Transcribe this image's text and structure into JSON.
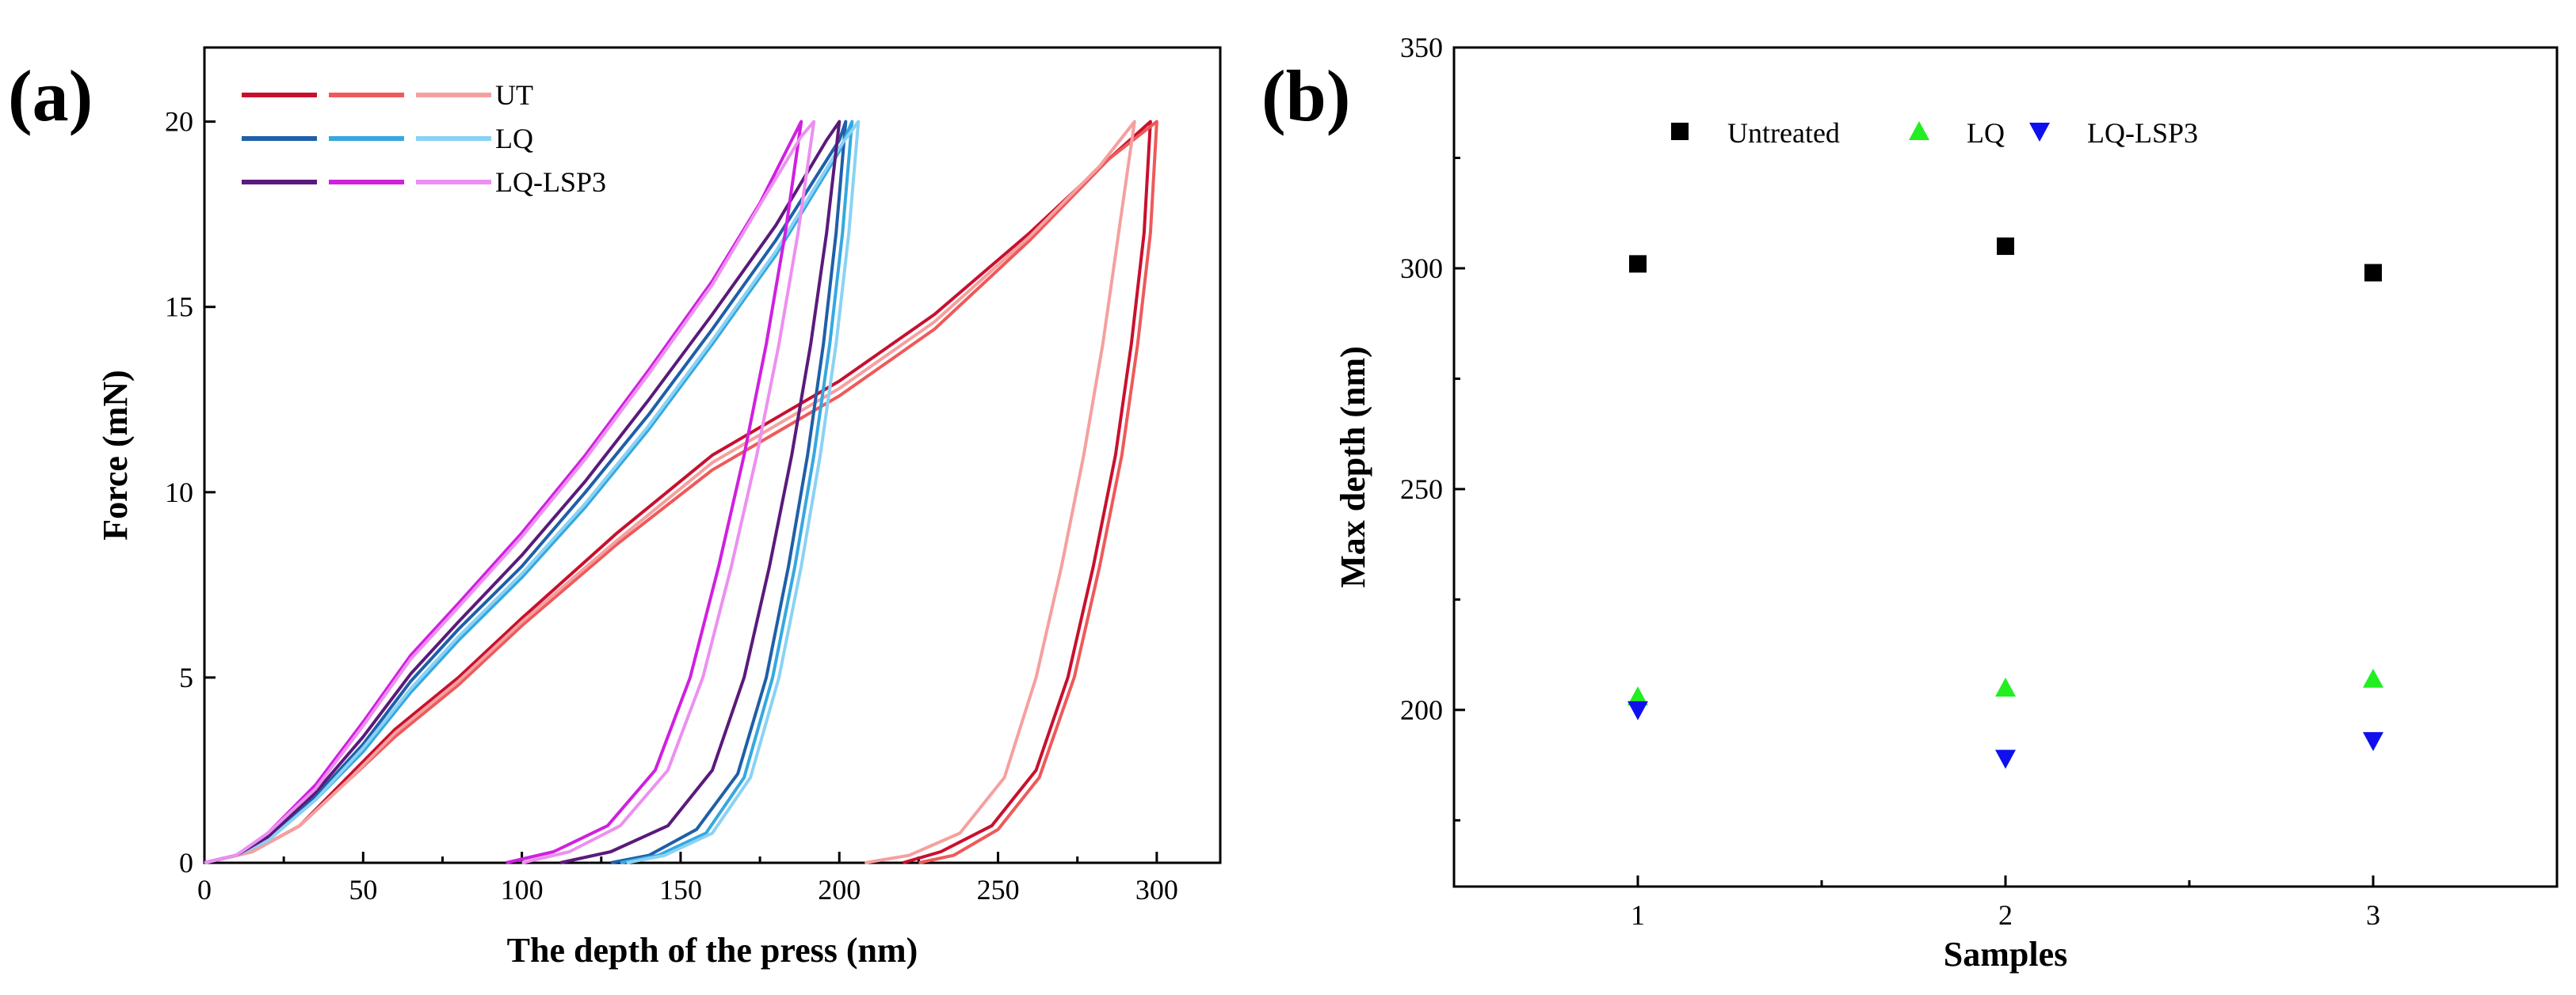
{
  "chart_data": [
    {
      "type": "line",
      "panel_label": "(a)",
      "xlabel": "The depth of the press (nm)",
      "ylabel": "Force (mN)",
      "xlim": [
        0,
        320
      ],
      "ylim": [
        0,
        22
      ],
      "xticks": [
        "0",
        "50",
        "100",
        "150",
        "200",
        "250",
        "300"
      ],
      "yticks": [
        "0",
        "5",
        "10",
        "15",
        "20"
      ],
      "legend": [
        "UT",
        "LQ",
        "LQ-LSP3"
      ],
      "series": [
        {
          "name": "UT",
          "color": "#c8102e",
          "loading": [
            [
              0,
              0
            ],
            [
              15,
              0.3
            ],
            [
              30,
              1.0
            ],
            [
              45,
              2.3
            ],
            [
              60,
              3.6
            ],
            [
              80,
              5.0
            ],
            [
              100,
              6.6
            ],
            [
              130,
              8.9
            ],
            [
              160,
              11.0
            ],
            [
              180,
              12.0
            ],
            [
              200,
              13.0
            ],
            [
              230,
              14.8
            ],
            [
              260,
              17.0
            ],
            [
              285,
              19.0
            ],
            [
              298,
              20.0
            ]
          ],
          "unloading": [
            [
              298,
              20.0
            ],
            [
              296,
              17.0
            ],
            [
              292,
              14.0
            ],
            [
              287,
              11.0
            ],
            [
              280,
              8.0
            ],
            [
              272,
              5.0
            ],
            [
              262,
              2.5
            ],
            [
              248,
              1.0
            ],
            [
              232,
              0.3
            ],
            [
              220,
              0
            ]
          ]
        },
        {
          "name": "UT",
          "color": "#ee5a5a",
          "loading": [
            [
              0,
              0
            ],
            [
              15,
              0.3
            ],
            [
              30,
              1.0
            ],
            [
              45,
              2.2
            ],
            [
              60,
              3.4
            ],
            [
              80,
              4.8
            ],
            [
              100,
              6.4
            ],
            [
              130,
              8.6
            ],
            [
              160,
              10.6
            ],
            [
              180,
              11.6
            ],
            [
              200,
              12.6
            ],
            [
              230,
              14.4
            ],
            [
              260,
              16.8
            ],
            [
              285,
              19.0
            ],
            [
              300,
              20.0
            ]
          ],
          "unloading": [
            [
              300,
              20.0
            ],
            [
              298,
              17.0
            ],
            [
              294,
              14.0
            ],
            [
              289,
              11.0
            ],
            [
              282,
              8.0
            ],
            [
              274,
              5.0
            ],
            [
              263,
              2.3
            ],
            [
              250,
              0.9
            ],
            [
              236,
              0.2
            ],
            [
              225,
              0
            ]
          ]
        },
        {
          "name": "UT",
          "color": "#f5a0a0",
          "loading": [
            [
              0,
              0
            ],
            [
              15,
              0.3
            ],
            [
              30,
              1.0
            ],
            [
              45,
              2.2
            ],
            [
              60,
              3.5
            ],
            [
              80,
              4.9
            ],
            [
              100,
              6.5
            ],
            [
              130,
              8.7
            ],
            [
              160,
              10.8
            ],
            [
              180,
              11.8
            ],
            [
              200,
              12.8
            ],
            [
              230,
              14.6
            ],
            [
              260,
              16.9
            ],
            [
              282,
              18.8
            ],
            [
              293,
              20.0
            ]
          ],
          "unloading": [
            [
              293,
              20.0
            ],
            [
              288,
              17.0
            ],
            [
              283,
              14.0
            ],
            [
              277,
              11.0
            ],
            [
              270,
              8.0
            ],
            [
              262,
              5.0
            ],
            [
              252,
              2.3
            ],
            [
              238,
              0.8
            ],
            [
              222,
              0.2
            ],
            [
              208,
              0
            ]
          ]
        },
        {
          "name": "LQ",
          "color": "#1f5fa8",
          "loading": [
            [
              0,
              0
            ],
            [
              10,
              0.2
            ],
            [
              20,
              0.7
            ],
            [
              35,
              1.8
            ],
            [
              50,
              3.2
            ],
            [
              65,
              4.9
            ],
            [
              80,
              6.3
            ],
            [
              100,
              8.0
            ],
            [
              120,
              10.0
            ],
            [
              140,
              12.1
            ],
            [
              160,
              14.4
            ],
            [
              180,
              16.8
            ],
            [
              200,
              19.5
            ],
            [
              202,
              20.0
            ]
          ],
          "unloading": [
            [
              202,
              20.0
            ],
            [
              199,
              17.0
            ],
            [
              195,
              14.0
            ],
            [
              190,
              11.0
            ],
            [
              184,
              8.0
            ],
            [
              177,
              5.0
            ],
            [
              168,
              2.4
            ],
            [
              155,
              0.9
            ],
            [
              140,
              0.2
            ],
            [
              128,
              0
            ]
          ]
        },
        {
          "name": "LQ",
          "color": "#35a8e0",
          "loading": [
            [
              0,
              0
            ],
            [
              10,
              0.2
            ],
            [
              20,
              0.6
            ],
            [
              35,
              1.7
            ],
            [
              50,
              3.0
            ],
            [
              65,
              4.6
            ],
            [
              80,
              6.0
            ],
            [
              100,
              7.7
            ],
            [
              120,
              9.6
            ],
            [
              140,
              11.7
            ],
            [
              160,
              14.0
            ],
            [
              180,
              16.4
            ],
            [
              200,
              19.2
            ],
            [
              204,
              20.0
            ]
          ],
          "unloading": [
            [
              204,
              20.0
            ],
            [
              201,
              17.0
            ],
            [
              197,
              14.0
            ],
            [
              192,
              11.0
            ],
            [
              186,
              8.0
            ],
            [
              179,
              5.0
            ],
            [
              170,
              2.3
            ],
            [
              158,
              0.8
            ],
            [
              143,
              0.2
            ],
            [
              131,
              0
            ]
          ]
        },
        {
          "name": "LQ",
          "color": "#8ad2f5",
          "loading": [
            [
              0,
              0
            ],
            [
              10,
              0.2
            ],
            [
              20,
              0.6
            ],
            [
              35,
              1.7
            ],
            [
              50,
              3.1
            ],
            [
              65,
              4.7
            ],
            [
              80,
              6.1
            ],
            [
              100,
              7.8
            ],
            [
              120,
              9.7
            ],
            [
              140,
              11.8
            ],
            [
              160,
              14.1
            ],
            [
              180,
              16.5
            ],
            [
              200,
              19.3
            ],
            [
              206,
              20.0
            ]
          ],
          "unloading": [
            [
              206,
              20.0
            ],
            [
              203,
              17.0
            ],
            [
              199,
              14.0
            ],
            [
              194,
              11.0
            ],
            [
              188,
              8.0
            ],
            [
              181,
              5.0
            ],
            [
              172,
              2.3
            ],
            [
              160,
              0.8
            ],
            [
              145,
              0.2
            ],
            [
              133,
              0
            ]
          ]
        },
        {
          "name": "LQ-LSP3",
          "color": "#5a1a7a",
          "loading": [
            [
              0,
              0
            ],
            [
              10,
              0.2
            ],
            [
              20,
              0.7
            ],
            [
              35,
              1.9
            ],
            [
              50,
              3.4
            ],
            [
              65,
              5.1
            ],
            [
              80,
              6.5
            ],
            [
              100,
              8.3
            ],
            [
              120,
              10.3
            ],
            [
              140,
              12.5
            ],
            [
              160,
              14.8
            ],
            [
              180,
              17.2
            ],
            [
              196,
              19.5
            ],
            [
              200,
              20.0
            ]
          ],
          "unloading": [
            [
              200,
              20.0
            ],
            [
              196,
              17.0
            ],
            [
              191,
              14.0
            ],
            [
              185,
              11.0
            ],
            [
              178,
              8.0
            ],
            [
              170,
              5.0
            ],
            [
              160,
              2.5
            ],
            [
              146,
              1.0
            ],
            [
              128,
              0.3
            ],
            [
              112,
              0
            ]
          ]
        },
        {
          "name": "LQ-LSP3",
          "color": "#d020e0",
          "loading": [
            [
              0,
              0
            ],
            [
              10,
              0.2
            ],
            [
              20,
              0.8
            ],
            [
              35,
              2.1
            ],
            [
              50,
              3.8
            ],
            [
              65,
              5.6
            ],
            [
              80,
              7.0
            ],
            [
              100,
              8.9
            ],
            [
              120,
              11.0
            ],
            [
              140,
              13.3
            ],
            [
              160,
              15.7
            ],
            [
              175,
              17.8
            ],
            [
              185,
              19.5
            ],
            [
              188,
              20.0
            ]
          ],
          "unloading": [
            [
              188,
              20.0
            ],
            [
              183,
              17.0
            ],
            [
              177,
              14.0
            ],
            [
              170,
              11.0
            ],
            [
              162,
              8.0
            ],
            [
              153,
              5.0
            ],
            [
              142,
              2.5
            ],
            [
              127,
              1.0
            ],
            [
              110,
              0.3
            ],
            [
              95,
              0
            ]
          ]
        },
        {
          "name": "LQ-LSP3",
          "color": "#ec90f0",
          "loading": [
            [
              0,
              0
            ],
            [
              10,
              0.2
            ],
            [
              20,
              0.8
            ],
            [
              35,
              2.0
            ],
            [
              50,
              3.7
            ],
            [
              65,
              5.5
            ],
            [
              80,
              6.9
            ],
            [
              100,
              8.8
            ],
            [
              120,
              10.9
            ],
            [
              140,
              13.2
            ],
            [
              160,
              15.6
            ],
            [
              176,
              17.9
            ],
            [
              188,
              19.6
            ],
            [
              192,
              20.0
            ]
          ],
          "unloading": [
            [
              192,
              20.0
            ],
            [
              187,
              17.0
            ],
            [
              181,
              14.0
            ],
            [
              174,
              11.0
            ],
            [
              166,
              8.0
            ],
            [
              157,
              5.0
            ],
            [
              146,
              2.5
            ],
            [
              131,
              1.0
            ],
            [
              115,
              0.3
            ],
            [
              100,
              0
            ]
          ]
        }
      ]
    },
    {
      "type": "scatter",
      "panel_label": "(b)",
      "xlabel": "Samples",
      "ylabel": "Max depth (nm)",
      "xlim": [
        0.5,
        3.5
      ],
      "ylim": [
        160,
        350
      ],
      "xticks": [
        "1",
        "2",
        "3"
      ],
      "yticks": [
        "200",
        "250",
        "300",
        "350"
      ],
      "series": [
        {
          "name": "Untreated",
          "marker": "square",
          "color": "#000000",
          "x": [
            1,
            2,
            3
          ],
          "y": [
            301,
            305,
            299
          ]
        },
        {
          "name": "LQ",
          "marker": "triangle-up",
          "color": "#22ee22",
          "x": [
            1,
            2,
            3
          ],
          "y": [
            203,
            205,
            207
          ]
        },
        {
          "name": "LQ-LSP3",
          "marker": "triangle-down",
          "color": "#1010ee",
          "x": [
            1,
            2,
            3
          ],
          "y": [
            200,
            189,
            193
          ]
        }
      ]
    }
  ]
}
